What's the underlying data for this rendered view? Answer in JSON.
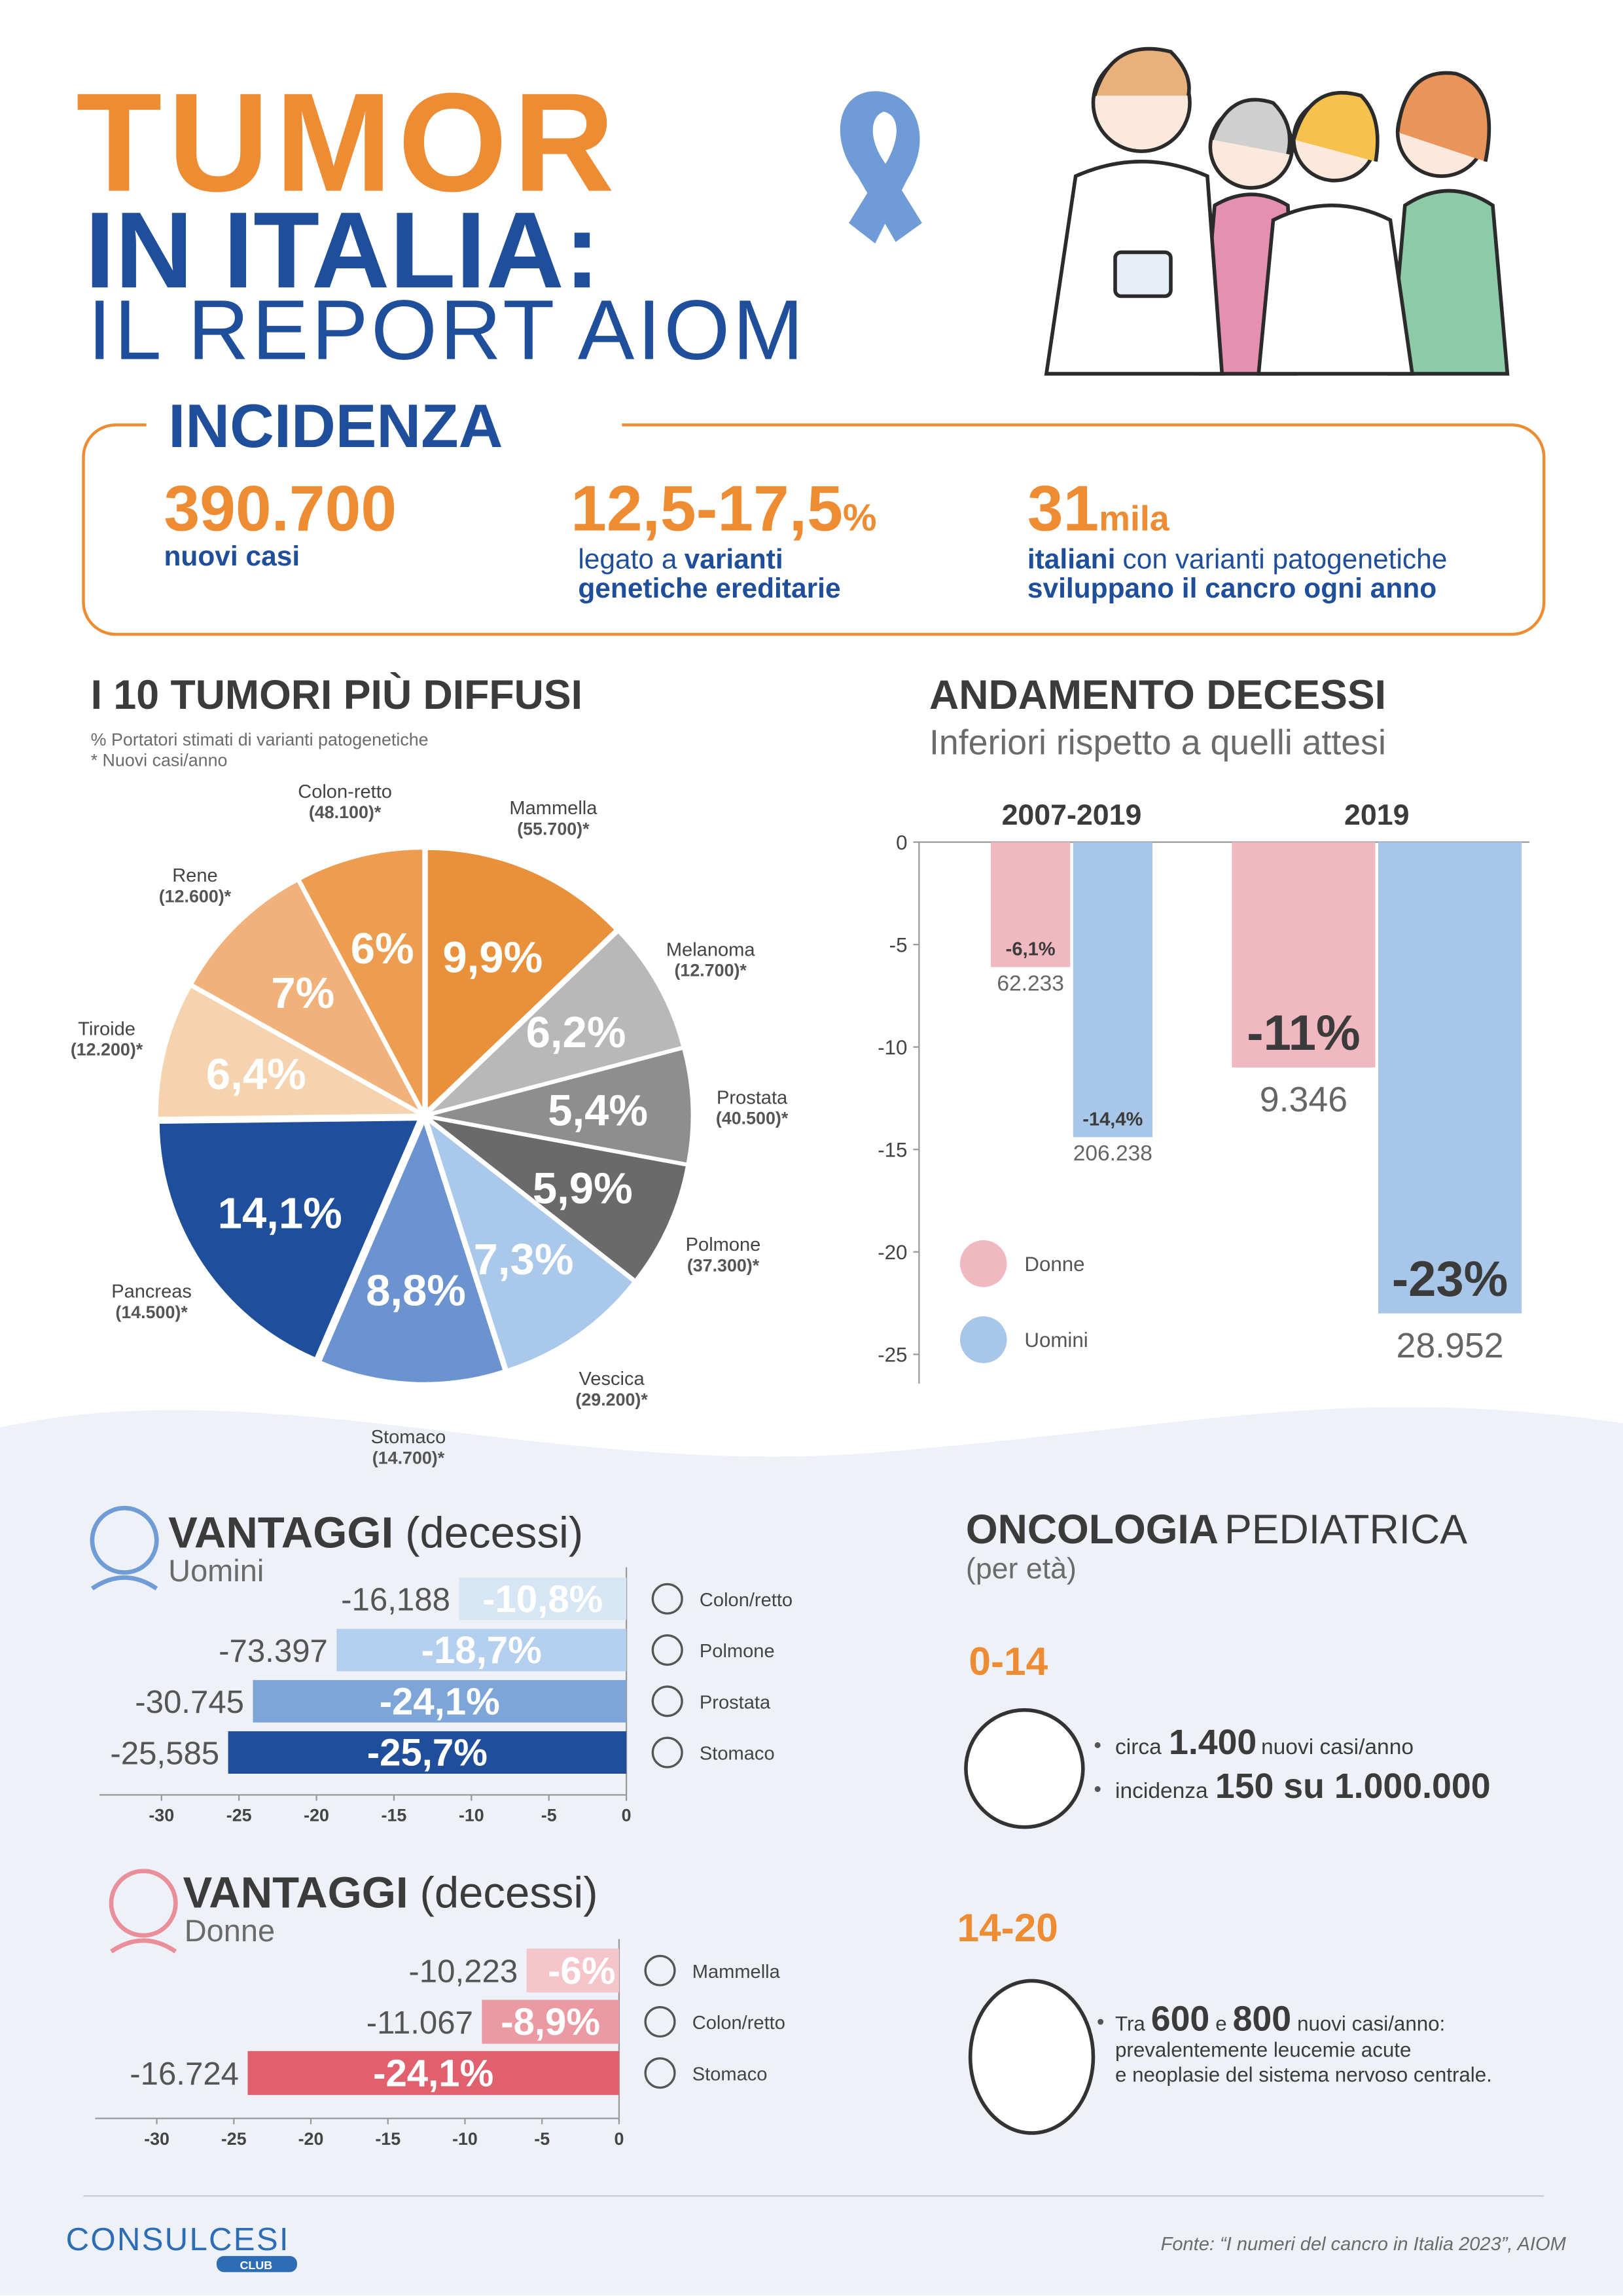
{
  "header": {
    "title_line1": "TUMOR",
    "title_line2": "IN ITALIA:",
    "title_line3": "IL REPORT AIOM"
  },
  "incidenza": {
    "title": "INCIDENZA",
    "stats": [
      {
        "value": "390.700",
        "line1": [
          "nuovi casi"
        ]
      },
      {
        "value": "12,5-17,5",
        "unit": "%",
        "line1": [
          "legato a",
          "varianti"
        ],
        "line2": "genetiche ereditarie"
      },
      {
        "value": "31",
        "unit": "mila",
        "line1": [
          "italiani",
          "con varianti patogenetiche"
        ],
        "line2": "sviluppano il cancro ogni anno"
      }
    ]
  },
  "chart_data": [
    {
      "type": "pie",
      "title": "I 10 TUMORI PIÙ DIFFUSI",
      "notes": [
        "% Portatori stimati di varianti patogenetiche",
        "*  Nuovi casi/anno"
      ],
      "categories": [
        "Mammella",
        "Melanoma",
        "Prostata",
        "Polmone",
        "Vescica",
        "Stomaco",
        "Pancreas",
        "Tiroide",
        "Rene",
        "Colon-retto"
      ],
      "values": [
        9.9,
        6.2,
        5.4,
        5.9,
        7.3,
        8.8,
        14.1,
        6.4,
        7,
        6
      ],
      "value_labels": [
        "9,9%",
        "6,2%",
        "5,4%",
        "5,9%",
        "7,3%",
        "8,8%",
        "14,1%",
        "6,4%",
        "7%",
        "6%"
      ],
      "cases": [
        55700,
        12700,
        40500,
        37300,
        29200,
        14700,
        14500,
        12200,
        12600,
        48100
      ],
      "cases_labels": [
        "(55.700)*",
        "(12.700)*",
        "(40.500)*",
        "(37.300)*",
        "(29.200)*",
        "(14.700)*",
        "(14.500)*",
        "(12.200)*",
        "(12.600)*",
        "(48.100)*"
      ],
      "colors": [
        "#e8903a",
        "#b8b8b8",
        "#8e8e8e",
        "#6a6a6a",
        "#a9c8ea",
        "#6a93cf",
        "#1f4e9a",
        "#f4d3ae",
        "#f0b27a",
        "#ec9d4f"
      ]
    },
    {
      "type": "bar",
      "title": "ANDAMENTO DECESSI",
      "subtitle": "Inferiori rispetto a quelli attesi",
      "categories": [
        "2007-2019",
        "2019"
      ],
      "series": [
        {
          "name": "Donne",
          "color": "#f0b8c0",
          "values": [
            -6.1,
            -11
          ],
          "value_labels": [
            "-6,1%",
            "-11%"
          ],
          "deaths": [
            62233,
            9346
          ],
          "deaths_labels": [
            "62.233",
            "9.346"
          ]
        },
        {
          "name": "Uomini",
          "color": "#a8c6e8",
          "values": [
            -14.4,
            -23
          ],
          "value_labels": [
            "-14,4%",
            "-23%"
          ],
          "deaths": [
            206238,
            28952
          ],
          "deaths_labels": [
            "206.238",
            "28.952"
          ]
        }
      ],
      "ylim": [
        -25,
        0
      ],
      "yticks": [
        0,
        -5,
        -10,
        -15,
        -20,
        -25
      ]
    },
    {
      "type": "bar",
      "orientation": "horizontal",
      "title": "VANTAGGI",
      "title_suffix": "(decessi)",
      "subtitle": "Uomini",
      "categories": [
        "Colon/retto",
        "Polmone",
        "Prostata",
        "Stomaco"
      ],
      "values": [
        -10.8,
        -18.7,
        -24.1,
        -25.7
      ],
      "value_labels": [
        "-10,8%",
        "-18,7%",
        "-24,1%",
        "-25,7%"
      ],
      "counts": [
        -16188,
        -73397,
        -30745,
        -25585
      ],
      "counts_labels": [
        "-16,188",
        "-73.397",
        "-30.745",
        "-25,585"
      ],
      "colors": [
        "#d7e6f5",
        "#b5d0ee",
        "#7ea5d8",
        "#1f4e9a"
      ],
      "xlim": [
        -34,
        0
      ],
      "xticks": [
        -30,
        -25,
        -20,
        -15,
        -10,
        -5,
        0
      ]
    },
    {
      "type": "bar",
      "orientation": "horizontal",
      "title": "VANTAGGI",
      "title_suffix": "(decessi)",
      "subtitle": "Donne",
      "categories": [
        "Mammella",
        "Colon/retto",
        "Stomaco"
      ],
      "values": [
        -6,
        -8.9,
        -24.1
      ],
      "value_labels": [
        "-6%",
        "-8,9%",
        "-24,1%"
      ],
      "counts": [
        -10223,
        -11067,
        -16724
      ],
      "counts_labels": [
        "-10,223",
        "-11.067",
        "-16.724"
      ],
      "colors": [
        "#f4c5cb",
        "#eb9aa3",
        "#e0606d"
      ],
      "xlim": [
        -34,
        0
      ],
      "xticks": [
        -30,
        -25,
        -20,
        -15,
        -10,
        -5,
        0
      ]
    }
  ],
  "pediatrica": {
    "title_bold": "ONCOLOGIA",
    "title_light": "PEDIATRICA",
    "subtitle": "(per età)",
    "groups": [
      {
        "age": "0-14",
        "bullets": [
          [
            "circa",
            "1.400",
            "nuovi casi/anno"
          ],
          [
            "incidenza",
            "150 su 1.000.000"
          ]
        ]
      },
      {
        "age": "14-20",
        "line1": [
          "Tra",
          "600",
          "e",
          "800",
          "nuovi casi/anno:"
        ],
        "line2": "prevalentemente leucemie acute",
        "line3": "e neoplasie del sistema nervoso centrale."
      }
    ]
  },
  "footer": {
    "logo": "CONSULCESI",
    "logo_sub": "CLUB",
    "source": "Fonte: “I numeri del cancro in Italia 2023”,  AIOM"
  }
}
